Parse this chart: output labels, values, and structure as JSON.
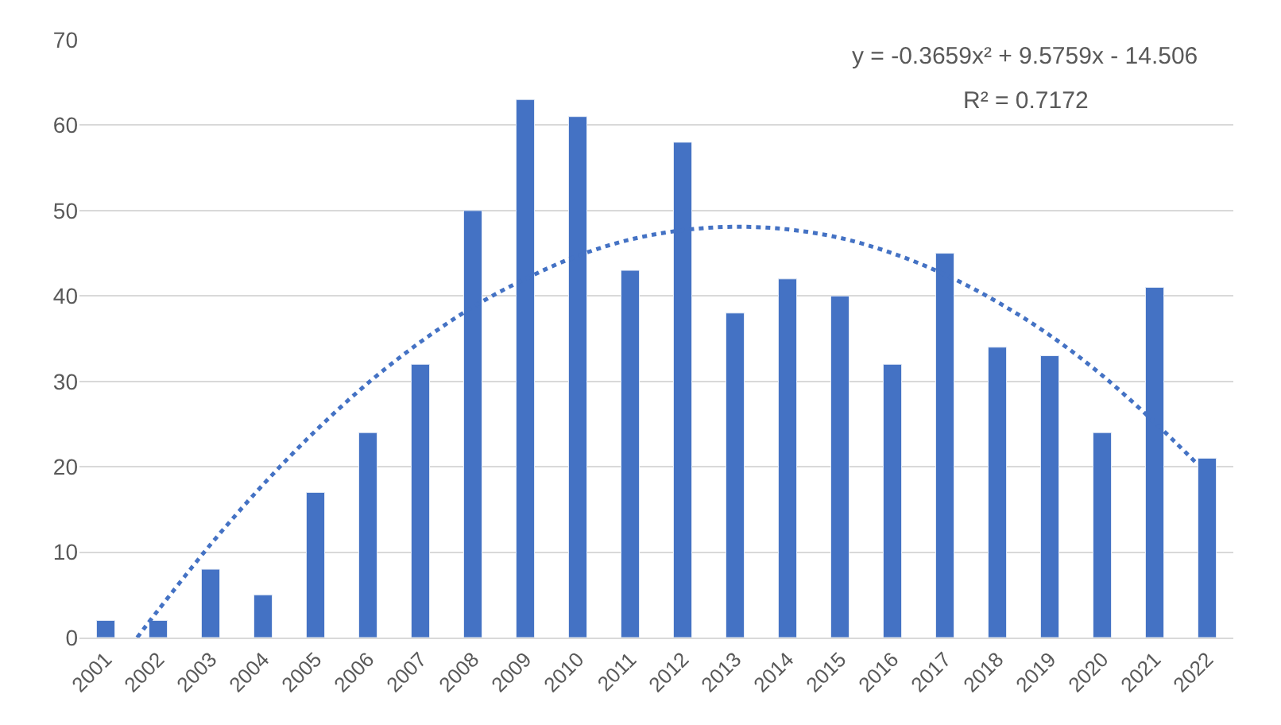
{
  "chart_data": {
    "type": "bar",
    "x": [
      2001,
      2002,
      2003,
      2004,
      2005,
      2006,
      2007,
      2008,
      2009,
      2010,
      2011,
      2012,
      2013,
      2014,
      2015,
      2016,
      2017,
      2018,
      2019,
      2020,
      2021,
      2022
    ],
    "xlim": [
      2000.5,
      2022.5
    ],
    "xticks": [
      2001,
      2002,
      2003,
      2004,
      2005,
      2006,
      2007,
      2008,
      2009,
      2010,
      2011,
      2012,
      2013,
      2014,
      2015,
      2016,
      2017,
      2018,
      2019,
      2020,
      2021,
      2022
    ],
    "ylim": [
      0,
      70
    ],
    "yticks": [
      0,
      10,
      20,
      30,
      40,
      50,
      60,
      70
    ],
    "grid": "y",
    "series": [
      {
        "color": "#4472c4",
        "values": [
          2,
          2,
          8,
          5,
          17,
          24,
          32,
          50,
          63,
          61,
          43,
          58,
          38,
          42,
          40,
          32,
          45,
          34,
          33,
          24,
          41,
          21
        ]
      },
      {
        "type": "line",
        "color": "#4472c4",
        "line_style": "dotted",
        "marker": "none",
        "x": [
          2001.6,
          2002,
          2003,
          2004,
          2005,
          2006,
          2007,
          2008,
          2009,
          2010,
          2011,
          2012,
          2013,
          2014,
          2015,
          2016,
          2017,
          2018,
          2019,
          2020,
          2021,
          2021.8
        ],
        "values": [
          0,
          3.2,
          10.9,
          17.9,
          24.2,
          29.8,
          34.6,
          38.7,
          42.0,
          44.7,
          46.6,
          47.7,
          48.1,
          47.8,
          46.8,
          45.0,
          42.5,
          39.3,
          35.4,
          30.7,
          25.2,
          20.4
        ]
      }
    ],
    "annotations": [
      "y = -0.3659x² + 9.5759x - 14.506",
      "R² = 0.7172"
    ]
  }
}
